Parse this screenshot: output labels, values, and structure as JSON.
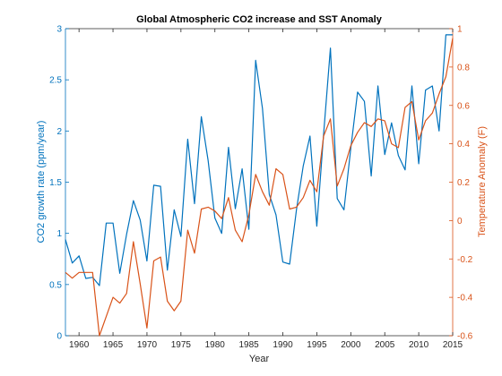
{
  "chart_data": {
    "type": "line",
    "title": "Global Atmospheric CO2 increase and SST Anomaly",
    "xlabel": "Year",
    "xlim": [
      1958,
      2015
    ],
    "x_ticks": [
      1960,
      1965,
      1970,
      1975,
      1980,
      1985,
      1990,
      1995,
      2000,
      2005,
      2010,
      2015
    ],
    "x_tick_labels": [
      "1960",
      "1965",
      "1970",
      "1975",
      "1980",
      "1985",
      "1990",
      "1995",
      "2000",
      "2005",
      "2010",
      "2015"
    ],
    "left_axis": {
      "label": "CO2 growth rate (ppm/year)",
      "color": "#0072BD",
      "ylim": [
        0,
        3
      ],
      "ticks": [
        0,
        0.5,
        1,
        1.5,
        2,
        2.5,
        3
      ],
      "tick_labels": [
        "0",
        "0.5",
        "1",
        "1.5",
        "2",
        "2.5",
        "3"
      ]
    },
    "right_axis": {
      "label": "Temperature Anomaly (F)",
      "color": "#D95319",
      "ylim": [
        -0.6,
        1.0
      ],
      "ticks": [
        -0.6,
        -0.4,
        -0.2,
        0,
        0.2,
        0.4,
        0.6,
        0.8,
        1
      ],
      "tick_labels": [
        "-0.6",
        "-0.4",
        "-0.2",
        "0",
        "0.2",
        "0.4",
        "0.6",
        "0.8",
        "1"
      ]
    },
    "grid": false,
    "series": [
      {
        "axis": "left",
        "color": "#0072BD",
        "x": [
          1958,
          1959,
          1960,
          1961,
          1962,
          1963,
          1964,
          1965,
          1966,
          1967,
          1968,
          1969,
          1970,
          1971,
          1972,
          1973,
          1974,
          1975,
          1976,
          1977,
          1978,
          1979,
          1980,
          1981,
          1982,
          1983,
          1984,
          1985,
          1986,
          1987,
          1988,
          1989,
          1990,
          1991,
          1992,
          1993,
          1994,
          1995,
          1996,
          1997,
          1998,
          1999,
          2000,
          2001,
          2002,
          2003,
          2004,
          2005,
          2006,
          2007,
          2008,
          2009,
          2010,
          2011,
          2012,
          2013,
          2014,
          2015
        ],
        "values": [
          0.94,
          0.71,
          0.78,
          0.56,
          0.57,
          0.49,
          1.1,
          1.1,
          0.61,
          0.99,
          1.32,
          1.13,
          0.73,
          1.47,
          1.46,
          0.64,
          1.23,
          0.97,
          1.92,
          1.29,
          2.14,
          1.71,
          1.15,
          1.0,
          1.84,
          1.24,
          1.63,
          1.04,
          2.69,
          2.22,
          1.38,
          1.18,
          0.72,
          0.7,
          1.23,
          1.66,
          1.95,
          1.07,
          1.97,
          2.81,
          1.34,
          1.23,
          1.83,
          2.38,
          2.29,
          1.56,
          2.44,
          1.77,
          2.08,
          1.76,
          1.62,
          2.44,
          1.68,
          2.4,
          2.44,
          2.0,
          2.94,
          2.94
        ]
      },
      {
        "axis": "right",
        "color": "#D95319",
        "x": [
          1958,
          1959,
          1960,
          1961,
          1962,
          1963,
          1964,
          1965,
          1966,
          1967,
          1968,
          1969,
          1970,
          1971,
          1972,
          1973,
          1974,
          1975,
          1976,
          1977,
          1978,
          1979,
          1980,
          1981,
          1982,
          1983,
          1984,
          1985,
          1986,
          1987,
          1988,
          1989,
          1990,
          1991,
          1992,
          1993,
          1994,
          1995,
          1996,
          1997,
          1998,
          1999,
          2000,
          2001,
          2002,
          2003,
          2004,
          2005,
          2006,
          2007,
          2008,
          2009,
          2010,
          2011,
          2012,
          2013,
          2014,
          2015
        ],
        "values": [
          -0.27,
          -0.3,
          -0.27,
          -0.27,
          -0.27,
          -0.6,
          -0.5,
          -0.4,
          -0.43,
          -0.38,
          -0.11,
          -0.33,
          -0.56,
          -0.21,
          -0.19,
          -0.42,
          -0.47,
          -0.42,
          -0.05,
          -0.17,
          0.06,
          0.07,
          0.05,
          0.01,
          0.12,
          -0.05,
          -0.11,
          0.03,
          0.24,
          0.15,
          0.08,
          0.27,
          0.24,
          0.06,
          0.07,
          0.12,
          0.21,
          0.15,
          0.44,
          0.53,
          0.18,
          0.27,
          0.39,
          0.46,
          0.51,
          0.49,
          0.53,
          0.52,
          0.4,
          0.38,
          0.59,
          0.62,
          0.42,
          0.52,
          0.56,
          0.66,
          0.75,
          0.95
        ]
      }
    ]
  }
}
